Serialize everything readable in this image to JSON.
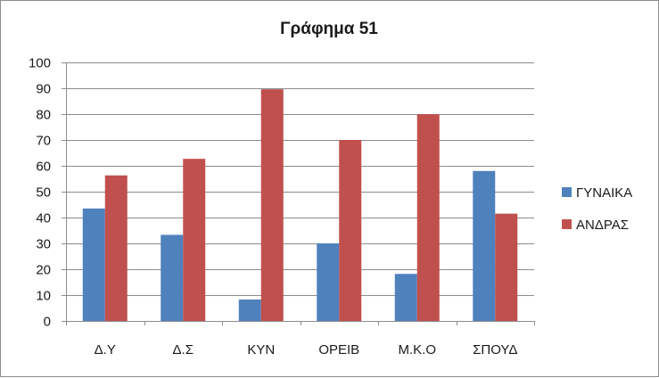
{
  "chart_data": {
    "type": "bar",
    "title": "Γράφημα 51",
    "xlabel": "",
    "ylabel": "",
    "categories": [
      "Δ.Υ",
      "Δ.Σ",
      "ΚΥΝ",
      "ΟΡΕΙΒ",
      "Μ.Κ.Ο",
      "ΣΠΟΥΔ"
    ],
    "series": [
      {
        "name": "ΓΥΝΑΙΚΑ",
        "color": "#4f81bd",
        "values": [
          43.5,
          33.3,
          8.3,
          30,
          18.2,
          58
        ]
      },
      {
        "name": "ΑΝΔΡΑΣ",
        "color": "#c0504d",
        "values": [
          56.3,
          62.7,
          89.6,
          70,
          80,
          41.5
        ]
      }
    ],
    "ylim": [
      0,
      100
    ],
    "yticks": [
      0,
      10,
      20,
      30,
      40,
      50,
      60,
      70,
      80,
      90,
      100
    ],
    "grid": true,
    "legend_position": "right"
  }
}
